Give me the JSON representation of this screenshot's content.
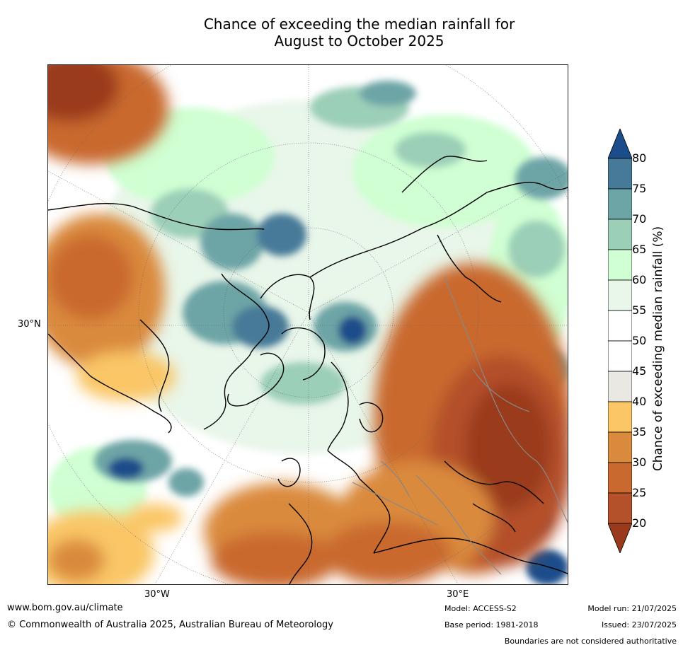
{
  "title": {
    "line1": "Chance of exceeding the median rainfall for",
    "line2": "August to October 2025"
  },
  "map": {
    "projection": "polar stereographic (north)",
    "lat_label": "30°N",
    "lon_labels": [
      "30°W",
      "30°E"
    ]
  },
  "colorbar": {
    "label": "Chance of exceeding median rainfall (%)",
    "ticks": [
      "20",
      "25",
      "30",
      "35",
      "40",
      "45",
      "50",
      "55",
      "60",
      "65",
      "70",
      "75",
      "80"
    ],
    "colors": [
      "#9a3a1c",
      "#b4502a",
      "#c9692f",
      "#da8a3c",
      "#fac666",
      "#e9e8e3",
      "#ffffff",
      "#ffffff",
      "#e9f6ea",
      "#cfffd2",
      "#9ccfb8",
      "#6da4a6",
      "#477a98",
      "#1a4d8a"
    ]
  },
  "footer": {
    "website": "www.bom.gov.au/climate",
    "copyright": "© Commonwealth of Australia 2025, Australian Bureau of Meteorology",
    "model": "Model: ACCESS-S2",
    "base_period": "Base period: 1981-2018",
    "model_run": "Model run: 21/07/2025",
    "issued": "Issued: 23/07/2025",
    "disclaimer": "Boundaries are not considered authoritative"
  }
}
